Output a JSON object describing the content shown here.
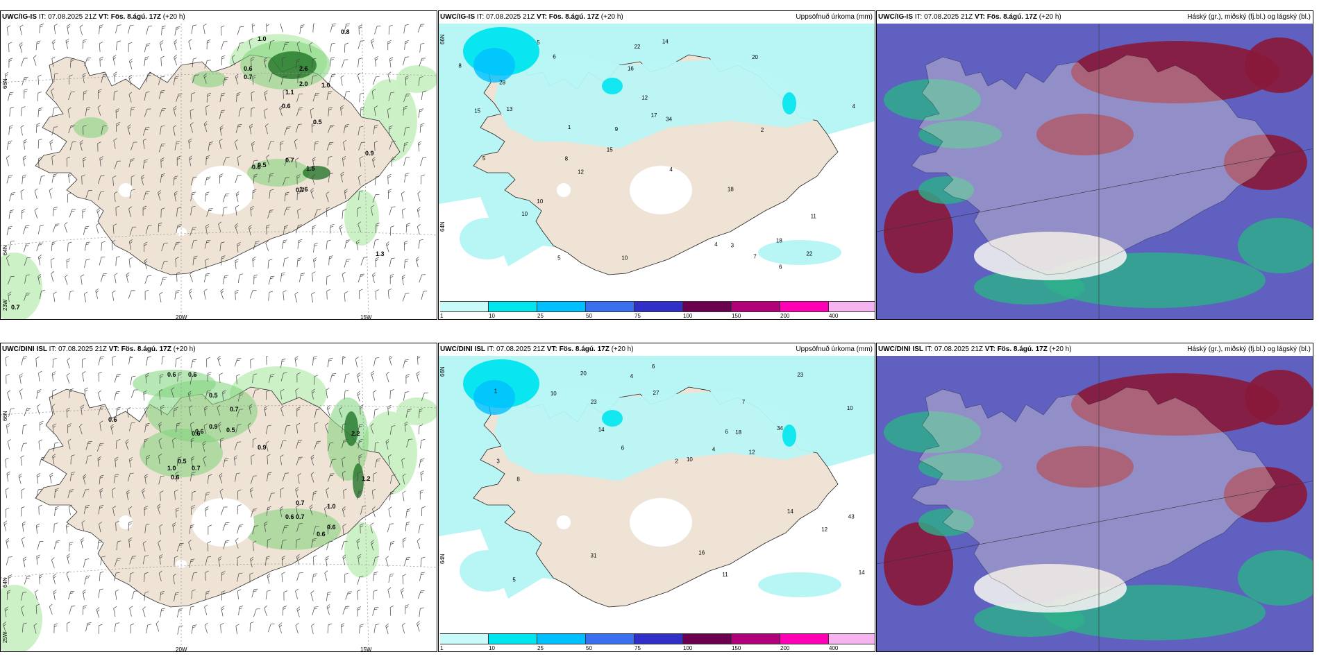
{
  "panels": [
    {
      "model": "UWC/IG-IS",
      "it_label": "IT:",
      "it_value": "07.08.2025 21Z",
      "vt_label": "VT:",
      "vt_value": "Fös. 8.ágú. 17Z",
      "lead": "(+20 h)",
      "right_title": "",
      "type": "wind",
      "grid_labels": {
        "lat_a": "66N",
        "lat_b": "64N",
        "lat_c": "23W",
        "lon_a": "20W",
        "lon_b": "15W"
      },
      "values": [
        "1.0",
        "0.8",
        "0.6",
        "0.7",
        "2.6",
        "2.0",
        "1.1",
        "1.0",
        "0.6",
        "0.5",
        "0.7",
        "1.5",
        "0.5",
        "0.6",
        "0.9",
        "1.6",
        "0.7",
        "1.3",
        "0.7"
      ]
    },
    {
      "model": "UWC/IG-IS",
      "it_label": "IT:",
      "it_value": "07.08.2025 21Z",
      "vt_label": "VT:",
      "vt_value": "Fös. 8.ágú. 17Z",
      "lead": "(+20 h)",
      "right_title": "Uppsöfnuð úrkoma (mm)",
      "type": "precip",
      "grid_labels": {
        "lat_a": "66N",
        "lat_b": "64N"
      },
      "values": [
        "10",
        "4",
        "4",
        "5",
        "6",
        "5",
        "10",
        "9",
        "10",
        "34",
        "16",
        "22",
        "20",
        "18",
        "14",
        "15",
        "12",
        "17",
        "18",
        "13",
        "28",
        "12",
        "8",
        "7",
        "5",
        "22",
        "3",
        "4",
        "2",
        "1",
        "6",
        "8",
        "11",
        "15"
      ]
    },
    {
      "model": "UWC/IG-IS",
      "it_label": "IT:",
      "it_value": "07.08.2025 21Z",
      "vt_label": "VT:",
      "vt_value": "Fös. 8.ágú. 17Z",
      "lead": "(+20 h)",
      "right_title": "Háský (gr.), miðský (fj.bl.) og lágský (bl.)",
      "type": "cloud"
    },
    {
      "model": "UWC/DINI ISL",
      "it_label": "IT:",
      "it_value": "07.08.2025 21Z",
      "vt_label": "VT:",
      "vt_value": "Fös. 8.ágú. 17Z",
      "lead": "(+20 h)",
      "right_title": "",
      "type": "wind",
      "grid_labels": {
        "lat_a": "66N",
        "lat_b": "64N",
        "lat_c": "25W",
        "lon_a": "20W",
        "lon_b": "15W"
      },
      "values": [
        "0.6",
        "0.6",
        "0.5",
        "0.6",
        "0.7",
        "0.9",
        "0.5",
        "0.6",
        "0.6",
        "0.9",
        "0.5",
        "1.0",
        "0.6",
        "0.7",
        "2.2",
        "1.2",
        "0.7",
        "0.7",
        "0.6",
        "1.0",
        "0.6",
        "0.6"
      ]
    },
    {
      "model": "UWC/DINI ISL",
      "it_label": "IT:",
      "it_value": "07.08.2025 21Z",
      "vt_label": "VT:",
      "vt_value": "Fös. 8.ágú. 17Z",
      "lead": "(+20 h)",
      "right_title": "Uppsöfnuð úrkoma (mm)",
      "type": "precip",
      "grid_labels": {
        "lat_a": "66N",
        "lat_b": "64N"
      },
      "values": [
        "12",
        "6",
        "4",
        "7",
        "10",
        "43",
        "34",
        "18",
        "27",
        "20",
        "14",
        "31",
        "16",
        "12",
        "23",
        "14",
        "11",
        "23",
        "14",
        "10",
        "8",
        "6",
        "5",
        "4",
        "3",
        "2",
        "1",
        "10",
        "6"
      ]
    },
    {
      "model": "UWC/DINI ISL",
      "it_label": "IT:",
      "it_value": "07.08.2025 21Z",
      "vt_label": "VT:",
      "vt_value": "Fös. 8.ágú. 17Z",
      "lead": "(+20 h)",
      "right_title": "Háský (gr.), miðský (fj.bl.) og lágský (bl.)",
      "type": "cloud"
    }
  ],
  "colorbar": {
    "labels": [
      "1",
      "10",
      "25",
      "50",
      "75",
      "100",
      "150",
      "200",
      "400"
    ],
    "colors": [
      "#c8fafa",
      "#00e5ee",
      "#00bfff",
      "#3a6ff0",
      "#3030c8",
      "#6b0050",
      "#b0007a",
      "#ff00b4",
      "#f5b4f0"
    ]
  },
  "colors": {
    "land": "#efe3d6",
    "sea_precip": "#b8f5f5",
    "green_light": "#c8f0c0",
    "green_mid": "#7dd37a",
    "green_dark": "#1a6e20",
    "cloud_purple": "#6060c0",
    "cloud_maroon": "#8a1838",
    "cloud_green": "#2db08a"
  }
}
